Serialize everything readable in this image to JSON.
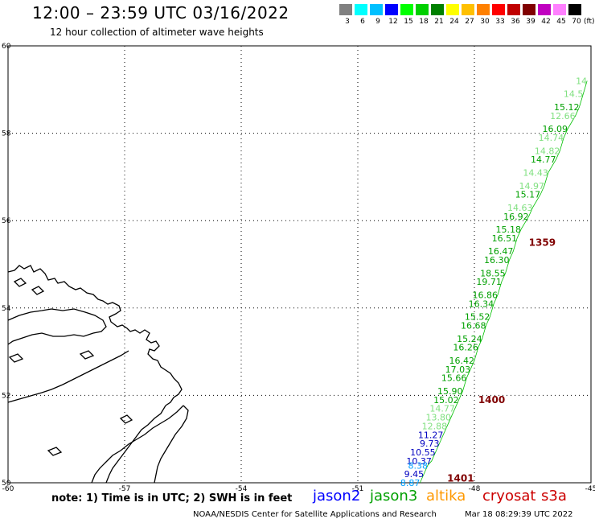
{
  "header": {
    "title": "12:00 – 23:59 UTC 03/16/2022",
    "subtitle": "12 hour collection of altimeter wave heights"
  },
  "legend": {
    "colors": [
      "#808080",
      "#00ffff",
      "#00c0ff",
      "#0000ff",
      "#00ff00",
      "#00d000",
      "#008000",
      "#ffff00",
      "#ffc000",
      "#ff8000",
      "#ff0000",
      "#c00000",
      "#800000",
      "#c000c0",
      "#ff80ff",
      "#000000"
    ],
    "labels": [
      "3",
      "6",
      "9",
      "12",
      "15",
      "18",
      "21",
      "24",
      "27",
      "30",
      "33",
      "36",
      "39",
      "42",
      "45",
      "70"
    ],
    "unit": "(ft)"
  },
  "map": {
    "lon_range": [
      -60,
      -45
    ],
    "lat_range": [
      50,
      60
    ],
    "lon_ticks": [
      "-60",
      "-57",
      "-54",
      "-51",
      "-48",
      "-45"
    ],
    "lat_ticks": [
      "60",
      "58",
      "56",
      "54",
      "52",
      "50"
    ],
    "track_color": "#00c000",
    "times": [
      {
        "label": "1359",
        "lon": -46.6,
        "lat": 55.5,
        "color": "#800000"
      },
      {
        "label": "1400",
        "lon": -47.9,
        "lat": 51.9,
        "color": "#800000"
      },
      {
        "label": "1401",
        "lon": -48.7,
        "lat": 50.1,
        "color": "#800000"
      }
    ],
    "observations": [
      {
        "v": "14",
        "lon": -45.1,
        "lat": 59.2,
        "color": "#80e080"
      },
      {
        "v": "14.5",
        "lon": -45.2,
        "lat": 58.9,
        "color": "#80e080"
      },
      {
        "v": "15.12",
        "lon": -45.3,
        "lat": 58.6,
        "color": "#00a000"
      },
      {
        "v": "12.66",
        "lon": -45.4,
        "lat": 58.4,
        "color": "#80e080"
      },
      {
        "v": "16.09",
        "lon": -45.6,
        "lat": 58.1,
        "color": "#00a000"
      },
      {
        "v": "14.74",
        "lon": -45.7,
        "lat": 57.9,
        "color": "#80e080"
      },
      {
        "v": "14.82",
        "lon": -45.8,
        "lat": 57.6,
        "color": "#80e080"
      },
      {
        "v": "14.77",
        "lon": -45.9,
        "lat": 57.4,
        "color": "#00a000"
      },
      {
        "v": "14.43",
        "lon": -46.1,
        "lat": 57.1,
        "color": "#80e080"
      },
      {
        "v": "14.97",
        "lon": -46.2,
        "lat": 56.8,
        "color": "#80e080"
      },
      {
        "v": "15.17",
        "lon": -46.3,
        "lat": 56.6,
        "color": "#00a000"
      },
      {
        "v": "14.63",
        "lon": -46.5,
        "lat": 56.3,
        "color": "#80e080"
      },
      {
        "v": "16.92",
        "lon": -46.6,
        "lat": 56.1,
        "color": "#00a000"
      },
      {
        "v": "15.18",
        "lon": -46.8,
        "lat": 55.8,
        "color": "#00a000"
      },
      {
        "v": "16.51",
        "lon": -46.9,
        "lat": 55.6,
        "color": "#00a000"
      },
      {
        "v": "16.47",
        "lon": -47.0,
        "lat": 55.3,
        "color": "#00a000"
      },
      {
        "v": "16.30",
        "lon": -47.1,
        "lat": 55.1,
        "color": "#00a000"
      },
      {
        "v": "18.55",
        "lon": -47.2,
        "lat": 54.8,
        "color": "#00a000"
      },
      {
        "v": "19.71",
        "lon": -47.3,
        "lat": 54.6,
        "color": "#00a000"
      },
      {
        "v": "16.86",
        "lon": -47.4,
        "lat": 54.3,
        "color": "#00a000"
      },
      {
        "v": "16.34",
        "lon": -47.5,
        "lat": 54.1,
        "color": "#00a000"
      },
      {
        "v": "15.52",
        "lon": -47.6,
        "lat": 53.8,
        "color": "#00a000"
      },
      {
        "v": "16.68",
        "lon": -47.7,
        "lat": 53.6,
        "color": "#00a000"
      },
      {
        "v": "15.24",
        "lon": -47.8,
        "lat": 53.3,
        "color": "#00a000"
      },
      {
        "v": "16.26",
        "lon": -47.9,
        "lat": 53.1,
        "color": "#00a000"
      },
      {
        "v": "16.42",
        "lon": -48.0,
        "lat": 52.8,
        "color": "#00a000"
      },
      {
        "v": "17.03",
        "lon": -48.1,
        "lat": 52.6,
        "color": "#00a000"
      },
      {
        "v": "15.66",
        "lon": -48.2,
        "lat": 52.4,
        "color": "#00a000"
      },
      {
        "v": "15.90",
        "lon": -48.3,
        "lat": 52.1,
        "color": "#00a000"
      },
      {
        "v": "15.02",
        "lon": -48.4,
        "lat": 51.9,
        "color": "#00a000"
      },
      {
        "v": "14.77",
        "lon": -48.5,
        "lat": 51.7,
        "color": "#80e080"
      },
      {
        "v": "13.80",
        "lon": -48.6,
        "lat": 51.5,
        "color": "#80e080"
      },
      {
        "v": "12.88",
        "lon": -48.7,
        "lat": 51.3,
        "color": "#80e080"
      },
      {
        "v": "11.27",
        "lon": -48.8,
        "lat": 51.1,
        "color": "#0000c0"
      },
      {
        "v": "9.73",
        "lon": -48.9,
        "lat": 50.9,
        "color": "#0000c0"
      },
      {
        "v": "10.55",
        "lon": -49.0,
        "lat": 50.7,
        "color": "#0000c0"
      },
      {
        "v": "10.37",
        "lon": -49.1,
        "lat": 50.5,
        "color": "#0000c0"
      },
      {
        "v": "8.38",
        "lon": -49.2,
        "lat": 50.4,
        "color": "#00a0ff"
      },
      {
        "v": "9.45",
        "lon": -49.3,
        "lat": 50.2,
        "color": "#0000c0"
      },
      {
        "v": "8.87",
        "lon": -49.4,
        "lat": 50.0,
        "color": "#00a0ff"
      }
    ]
  },
  "footer": {
    "note": "note: 1) Time is in UTC; 2) SWH is in feet",
    "satellites": [
      {
        "name": "jason2",
        "color": "#0000ff"
      },
      {
        "name": "jason3",
        "color": "#00a000"
      },
      {
        "name": "altika",
        "color": "#ff9900"
      },
      {
        "name": "cryosat",
        "color": "#cc0000"
      },
      {
        "name": "s3a",
        "color": "#cc0000"
      }
    ],
    "credit": "NOAA/NESDIS Center for Satellite Applications and Research",
    "stamp": "Mar 18 08:29:39 UTC 2022"
  }
}
